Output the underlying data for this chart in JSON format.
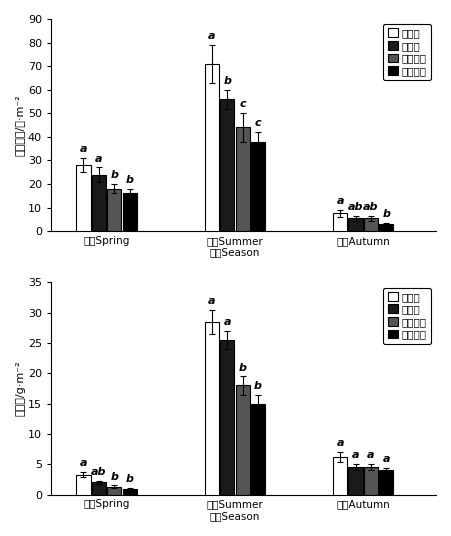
{
  "top_ylabel": "个体数量/只·m⁻²",
  "bottom_ylabel": "生物量/g·m⁻²",
  "legend_labels": [
    "对照区",
    "刈割区",
    "高羊茅区",
    "黑麦草区"
  ],
  "bar_colors": [
    "white",
    "#1a1a1a",
    "#555555",
    "#000000"
  ],
  "bar_edge_colors": [
    "black",
    "black",
    "black",
    "black"
  ],
  "top": {
    "spring": [
      28,
      24,
      18,
      16
    ],
    "spring_err": [
      3,
      3,
      2,
      2
    ],
    "summer": [
      71,
      56,
      44,
      38
    ],
    "summer_err": [
      8,
      4,
      6,
      4
    ],
    "autumn": [
      7.5,
      5.5,
      5.5,
      3
    ],
    "autumn_err": [
      1.5,
      1,
      1,
      0.5
    ],
    "ylim": [
      0,
      90
    ],
    "yticks": [
      0,
      10,
      20,
      30,
      40,
      50,
      60,
      70,
      80,
      90
    ],
    "spring_sig": [
      "a",
      "a",
      "b",
      "b"
    ],
    "summer_sig": [
      "a",
      "b",
      "c",
      "c"
    ],
    "autumn_sig": [
      "a",
      "ab",
      "ab",
      "b"
    ]
  },
  "bottom": {
    "spring": [
      3.3,
      2.0,
      1.3,
      0.9
    ],
    "spring_err": [
      0.4,
      0.3,
      0.2,
      0.15
    ],
    "summer": [
      28.5,
      25.5,
      18,
      15
    ],
    "summer_err": [
      2,
      1.5,
      1.5,
      1.5
    ],
    "autumn": [
      6.2,
      4.5,
      4.5,
      4.0
    ],
    "autumn_err": [
      0.8,
      0.5,
      0.5,
      0.4
    ],
    "ylim": [
      0,
      35
    ],
    "yticks": [
      0,
      5,
      10,
      15,
      20,
      25,
      30,
      35
    ],
    "spring_sig": [
      "a",
      "ab",
      "b",
      "b"
    ],
    "summer_sig": [
      "a",
      "a",
      "b",
      "b"
    ],
    "autumn_sig": [
      "a",
      "a",
      "a",
      "a"
    ]
  },
  "bar_width": 0.18,
  "group_centers": [
    1.0,
    2.5,
    4.0
  ],
  "hatches": [
    null,
    null,
    null,
    "...."
  ],
  "sig_fontsize": 8,
  "legend_fontsize": 7.5,
  "xtick_labels": [
    "春季Spring",
    "夏季Summer\n季节Season",
    "秋季Autumn"
  ]
}
